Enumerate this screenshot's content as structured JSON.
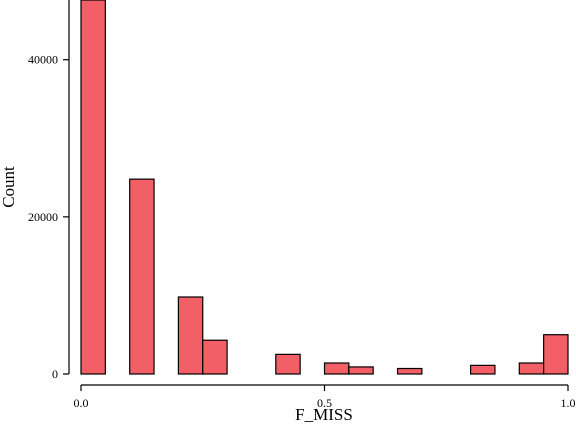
{
  "chart_data": {
    "type": "histogram",
    "x_label": "F_MISS",
    "y_label": "Count",
    "bins": [
      0,
      0.05,
      0.1,
      0.15,
      0.2,
      0.25,
      0.3,
      0.35,
      0.4,
      0.45,
      0.5,
      0.55,
      0.6,
      0.65,
      0.7,
      0.75,
      0.8,
      0.85,
      0.9,
      0.95,
      1
    ],
    "values": [
      47600,
      0,
      24800,
      0,
      9800,
      4300,
      0,
      0,
      2500,
      0,
      1400,
      900,
      0,
      700,
      0,
      0,
      1100,
      0,
      1400,
      5000
    ],
    "color": "#f25f67",
    "xlim": [
      0,
      1
    ],
    "xticks": [
      {
        "value": 0,
        "label": "0.0"
      },
      0.5,
      {
        "value": 1,
        "label": "1.0"
      }
    ],
    "ylim": [
      0,
      47600
    ],
    "yticks": [
      0,
      20000,
      40000
    ]
  }
}
